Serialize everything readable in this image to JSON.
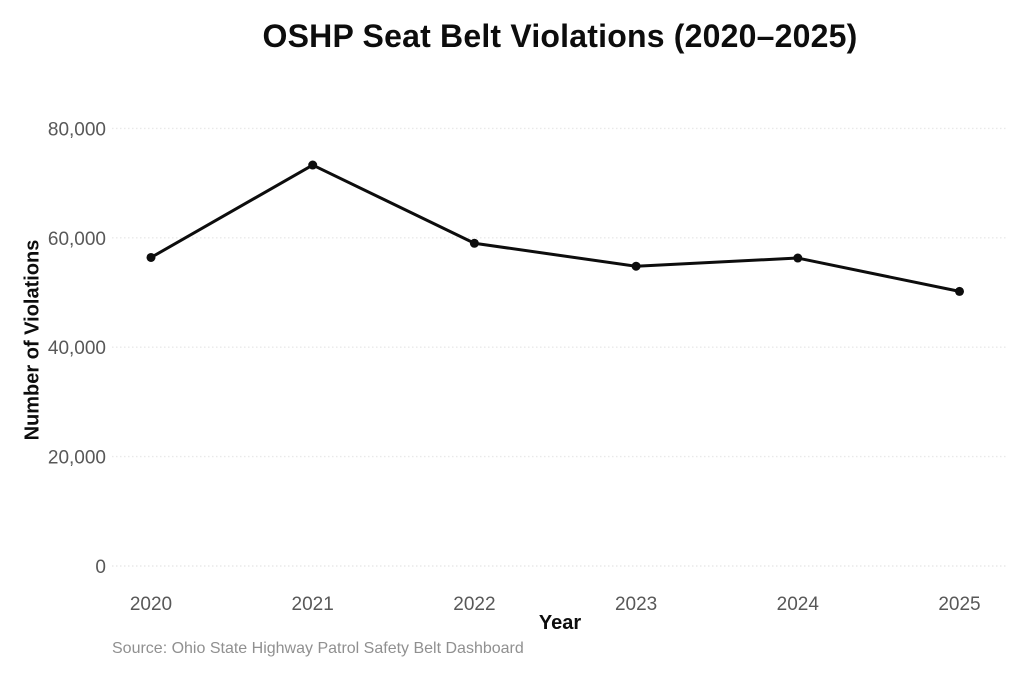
{
  "chart_data": {
    "type": "line",
    "title": "OSHP Seat Belt Violations (2020–2025)",
    "xlabel": "Year",
    "ylabel": "Number of Violations",
    "categories": [
      "2020",
      "2021",
      "2022",
      "2023",
      "2024",
      "2025"
    ],
    "series": [
      {
        "name": "Seat Belt Violations",
        "values": [
          56400,
          73300,
          59000,
          54800,
          56300,
          50200
        ]
      }
    ],
    "ylim": [
      0,
      80000
    ],
    "yticks": [
      0,
      20000,
      40000,
      60000,
      80000
    ],
    "ytick_labels": [
      "0",
      "20,000",
      "40,000",
      "60,000",
      "80,000"
    ],
    "grid": "horizontal dotted gridlines, no axis spines",
    "legend": "none",
    "marker": "filled circle",
    "source": "Source: Ohio State Highway Patrol Safety Belt Dashboard"
  },
  "colors": {
    "line": "#0d0d0d",
    "marker": "#0d0d0d",
    "title_text": "#0d0d0d",
    "axis_label_text": "#0d0d0d",
    "tick_text": "#585858",
    "gridline": "#e9e9e9",
    "source_text": "#909090",
    "background": "#ffffff"
  }
}
